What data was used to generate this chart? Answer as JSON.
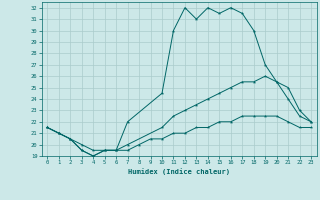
{
  "title": "",
  "xlabel": "Humidex (Indice chaleur)",
  "ylabel": "",
  "background_color": "#cce8e8",
  "grid_color": "#aacccc",
  "line_color": "#006666",
  "xlim": [
    -0.5,
    23.5
  ],
  "ylim": [
    19,
    32.5
  ],
  "yticks": [
    19,
    20,
    21,
    22,
    23,
    24,
    25,
    26,
    27,
    28,
    29,
    30,
    31,
    32
  ],
  "xticks": [
    0,
    1,
    2,
    3,
    4,
    5,
    6,
    7,
    8,
    9,
    10,
    11,
    12,
    13,
    14,
    15,
    16,
    17,
    18,
    19,
    20,
    21,
    22,
    23
  ],
  "line1_x": [
    0,
    1,
    2,
    3,
    4,
    5,
    6,
    7,
    10,
    11,
    12,
    13,
    14,
    15,
    16,
    17,
    18,
    19,
    20,
    21,
    22,
    23
  ],
  "line1_y": [
    21.5,
    21.0,
    20.5,
    19.5,
    19.0,
    19.5,
    19.5,
    22.0,
    24.5,
    30.0,
    32.0,
    31.0,
    32.0,
    31.5,
    32.0,
    31.5,
    30.0,
    27.0,
    25.5,
    24.0,
    22.5,
    22.0
  ],
  "line2_x": [
    0,
    1,
    2,
    3,
    4,
    5,
    6,
    7,
    10,
    11,
    12,
    13,
    14,
    15,
    16,
    17,
    18,
    19,
    20,
    21,
    22,
    23
  ],
  "line2_y": [
    21.5,
    21.0,
    20.5,
    19.5,
    19.0,
    19.5,
    19.5,
    20.0,
    21.5,
    22.5,
    23.0,
    23.5,
    24.0,
    24.5,
    25.0,
    25.5,
    25.5,
    26.0,
    25.5,
    25.0,
    23.0,
    22.0
  ],
  "line3_x": [
    0,
    1,
    2,
    3,
    4,
    5,
    6,
    7,
    8,
    9,
    10,
    11,
    12,
    13,
    14,
    15,
    16,
    17,
    18,
    19,
    20,
    21,
    22,
    23
  ],
  "line3_y": [
    21.5,
    21.0,
    20.5,
    20.0,
    19.5,
    19.5,
    19.5,
    19.5,
    20.0,
    20.5,
    20.5,
    21.0,
    21.0,
    21.5,
    21.5,
    22.0,
    22.0,
    22.5,
    22.5,
    22.5,
    22.5,
    22.0,
    21.5,
    21.5
  ]
}
